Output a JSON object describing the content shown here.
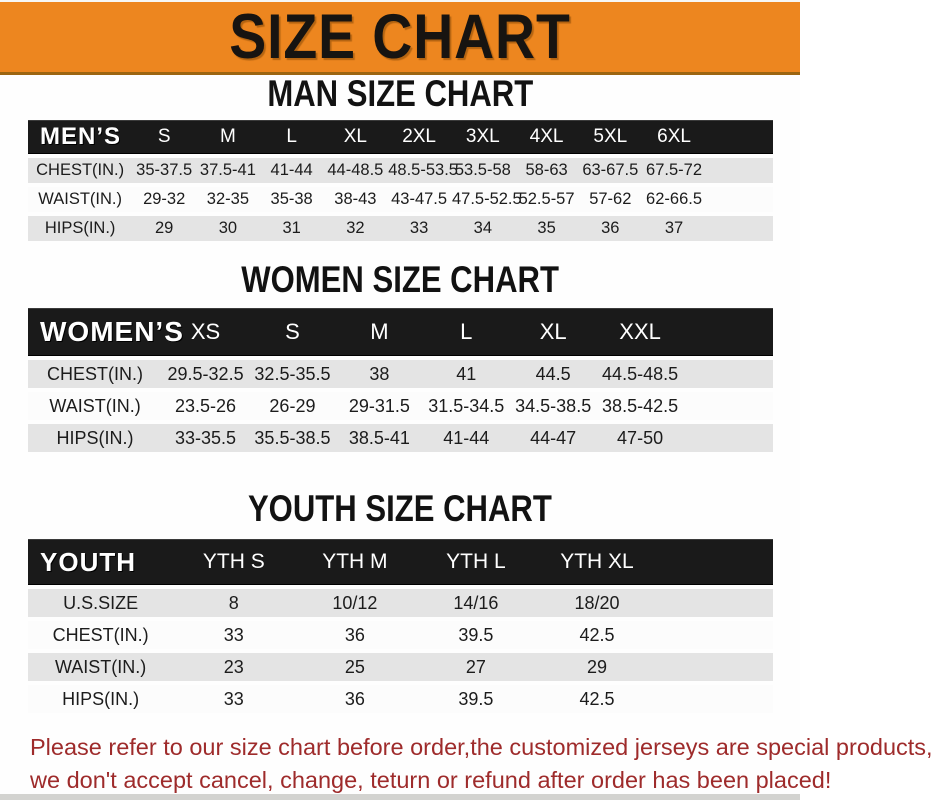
{
  "banner": {
    "title": "SIZE CHART"
  },
  "sections": [
    {
      "id": "men",
      "title": "MAN SIZE CHART",
      "header_label": "MEN’S",
      "columns": [
        "S",
        "M",
        "L",
        "XL",
        "2XL",
        "3XL",
        "4XL",
        "5XL",
        "6XL"
      ],
      "rows": [
        {
          "label": "CHEST(IN.)",
          "values": [
            "35-37.5",
            "37.5-41",
            "41-44",
            "44-48.5",
            "48.5-53.5",
            "53.5-58",
            "58-63",
            "63-67.5",
            "67.5-72"
          ]
        },
        {
          "label": "WAIST(IN.)",
          "values": [
            "29-32",
            "32-35",
            "35-38",
            "38-43",
            "43-47.5",
            "47.5-52.5",
            "52.5-57",
            "57-62",
            "62-66.5"
          ]
        },
        {
          "label": "HIPS(IN.)",
          "values": [
            "29",
            "30",
            "31",
            "32",
            "33",
            "34",
            "35",
            "36",
            "37"
          ]
        }
      ]
    },
    {
      "id": "women",
      "title": "WOMEN SIZE CHART",
      "header_label": "WOMEN’S",
      "columns": [
        "XS",
        "S",
        "M",
        "L",
        "XL",
        "XXL"
      ],
      "rows": [
        {
          "label": "CHEST(IN.)",
          "values": [
            "29.5-32.5",
            "32.5-35.5",
            "38",
            "41",
            "44.5",
            "44.5-48.5"
          ]
        },
        {
          "label": "WAIST(IN.)",
          "values": [
            "23.5-26",
            "26-29",
            "29-31.5",
            "31.5-34.5",
            "34.5-38.5",
            "38.5-42.5"
          ]
        },
        {
          "label": "HIPS(IN.)",
          "values": [
            "33-35.5",
            "35.5-38.5",
            "38.5-41",
            "41-44",
            "44-47",
            "47-50"
          ]
        }
      ]
    },
    {
      "id": "youth",
      "title": "YOUTH SIZE CHART",
      "header_label": "YOUTH",
      "columns": [
        "YTH S",
        "YTH M",
        "YTH L",
        "YTH XL"
      ],
      "rows": [
        {
          "label": "U.S.SIZE",
          "values": [
            "8",
            "10/12",
            "14/16",
            "18/20"
          ]
        },
        {
          "label": "CHEST(IN.)",
          "values": [
            "33",
            "36",
            "39.5",
            "42.5"
          ]
        },
        {
          "label": "WAIST(IN.)",
          "values": [
            "23",
            "25",
            "27",
            "29"
          ]
        },
        {
          "label": "HIPS(IN.)",
          "values": [
            "33",
            "36",
            "39.5",
            "42.5"
          ]
        }
      ]
    }
  ],
  "footer": {
    "line1": "Please refer to our size chart before order,the customized jerseys are special products,",
    "line2": "we don't accept cancel, change, teturn or refund after order has been placed!"
  },
  "colors": {
    "banner_orange": "#ED861F",
    "header_black": "#1A1A1A",
    "row_gray": "#E4E4E4",
    "row_white": "#FCFCFC",
    "footer_red": "#9E2B2B"
  }
}
